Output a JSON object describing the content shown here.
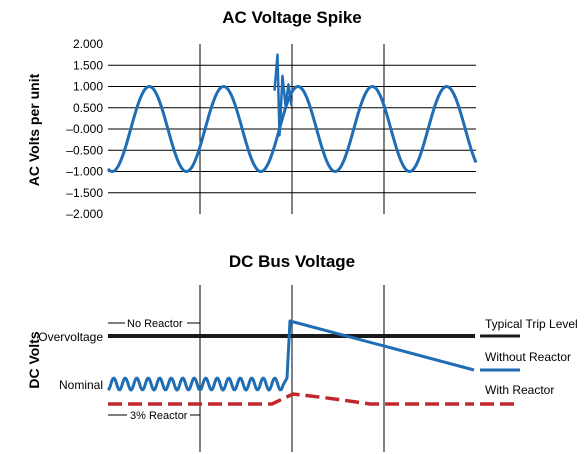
{
  "chart_data": [
    {
      "type": "line",
      "title": "AC Voltage Spike",
      "ylabel": "AC Volts per unit",
      "xlabel": "",
      "ylim": [
        -2.0,
        2.0
      ],
      "yticks": [
        "2.000",
        "1.500",
        "1.000",
        "0.500",
        "–0.000",
        "–0.500",
        "–1.000",
        "–1.500",
        "–2.000"
      ],
      "grid": true,
      "series": [
        {
          "color": "#1f6db5",
          "waveform": "sine",
          "amplitude": 1.0,
          "cycles": 5,
          "spike": {
            "peak": 1.75,
            "trough": -0.15,
            "at_cycle": 2.5
          }
        }
      ]
    },
    {
      "type": "line",
      "title": "DC Bus Voltage",
      "ylabel": "DC Volts",
      "xlabel": "",
      "grid": true,
      "y_labels": [
        "Overvoltage",
        "Nominal"
      ],
      "line_annotations": [
        "No Reactor",
        "3% Reactor"
      ],
      "reference_line": {
        "label": "Typical Trip Level",
        "color": "#1a1a1a"
      },
      "series": [
        {
          "name": "Without Reactor",
          "color": "#1f6db5",
          "style": "solid"
        },
        {
          "name": "With Reactor",
          "color": "#c0282d",
          "style": "dashed"
        }
      ]
    }
  ]
}
